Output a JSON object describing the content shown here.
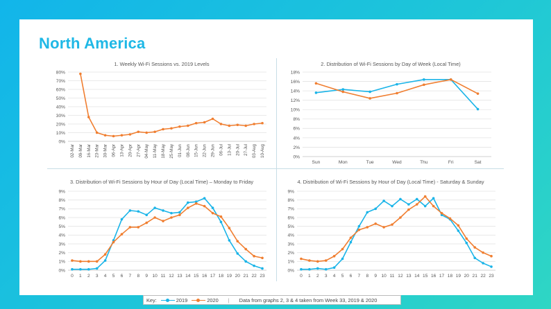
{
  "page": {
    "title": "North America"
  },
  "colors": {
    "series_2019": "#1ab4e8",
    "series_2020": "#f07e30",
    "grid": "#e3e3e3",
    "title": "#1fb8e6"
  },
  "legend": {
    "key_label": "Key:",
    "series_2019": "2019",
    "series_2020": "2020",
    "separator": "|",
    "note": "Data from graphs 2, 3 & 4 taken from Week 33, 2019 & 2020"
  },
  "chart_data": [
    {
      "type": "line",
      "title": "1. Weekly Wi-Fi Sessions vs. 2019 Levels",
      "categories": [
        "02-Mar",
        "09-Mar",
        "16-Mar",
        "23-Mar",
        "30-Mar",
        "06-Apr",
        "13-Apr",
        "20-Apr",
        "27-Apr",
        "04-May",
        "11-May",
        "18-May",
        "25-May",
        "01-Jun",
        "08-Jun",
        "15-Jun",
        "22-Jun",
        "29-Jun",
        "06-Jul",
        "13-Jul",
        "20-Jul",
        "27-Jul",
        "03-Aug",
        "10-Aug"
      ],
      "yticks": [
        "0%",
        "10%",
        "20%",
        "30%",
        "40%",
        "50%",
        "60%",
        "70%",
        "80%"
      ],
      "ylim": [
        0,
        80
      ],
      "series": [
        {
          "name": "2020",
          "color": "#f07e30",
          "values": [
            null,
            78,
            28,
            10,
            7,
            6,
            7,
            8,
            11,
            10,
            11,
            14,
            15,
            17,
            18,
            21,
            22,
            26,
            20,
            18,
            19,
            18,
            20,
            21
          ]
        }
      ]
    },
    {
      "type": "line",
      "title": "2. Distribution of Wi-Fi Sessions by Day of Week (Local Time)",
      "categories": [
        "Sun",
        "Mon",
        "Tue",
        "Wed",
        "Thu",
        "Fri",
        "Sat"
      ],
      "yticks": [
        "0%",
        "2%",
        "4%",
        "6%",
        "8%",
        "10%",
        "12%",
        "14%",
        "16%",
        "18%"
      ],
      "ylim": [
        0,
        18
      ],
      "series": [
        {
          "name": "2019",
          "color": "#1ab4e8",
          "values": [
            13.6,
            14.3,
            13.8,
            15.4,
            16.4,
            16.4,
            10.1
          ]
        },
        {
          "name": "2020",
          "color": "#f07e30",
          "values": [
            15.6,
            13.8,
            12.4,
            13.5,
            15.3,
            16.4,
            13.4
          ]
        }
      ]
    },
    {
      "type": "line",
      "title": "3. Distribution of Wi-Fi Sessions by Hour of Day (Local Time) – Monday to Friday",
      "categories": [
        "0",
        "1",
        "2",
        "3",
        "4",
        "5",
        "6",
        "7",
        "8",
        "9",
        "10",
        "11",
        "12",
        "13",
        "14",
        "15",
        "16",
        "17",
        "18",
        "19",
        "20",
        "21",
        "22",
        "23"
      ],
      "yticks": [
        "0%",
        "1%",
        "2%",
        "3%",
        "4%",
        "5%",
        "6%",
        "7%",
        "8%",
        "9%"
      ],
      "ylim": [
        0,
        9
      ],
      "series": [
        {
          "name": "2019",
          "color": "#1ab4e8",
          "values": [
            0.1,
            0.1,
            0.1,
            0.2,
            1.1,
            3.4,
            5.8,
            6.8,
            6.7,
            6.3,
            7.1,
            6.8,
            6.5,
            6.6,
            7.7,
            7.8,
            8.2,
            7.1,
            5.5,
            3.4,
            1.9,
            1.0,
            0.5,
            0.2
          ]
        },
        {
          "name": "2020",
          "color": "#f07e30",
          "values": [
            1.1,
            1.0,
            1.0,
            1.0,
            1.8,
            3.2,
            4.1,
            4.9,
            4.9,
            5.4,
            6.0,
            5.6,
            6.0,
            6.3,
            7.1,
            7.6,
            7.3,
            6.5,
            6.1,
            4.8,
            3.3,
            2.4,
            1.6,
            1.4
          ]
        }
      ]
    },
    {
      "type": "line",
      "title": "4. Distribution of Wi-Fi Sessions by Hour of Day (Local Time) - Saturday & Sunday",
      "categories": [
        "0",
        "1",
        "2",
        "3",
        "4",
        "5",
        "6",
        "7",
        "8",
        "9",
        "10",
        "11",
        "12",
        "13",
        "14",
        "15",
        "16",
        "17",
        "18",
        "19",
        "20",
        "21",
        "22",
        "23"
      ],
      "yticks": [
        "0%",
        "1%",
        "2%",
        "3%",
        "4%",
        "5%",
        "6%",
        "7%",
        "8%",
        "9%"
      ],
      "ylim": [
        0,
        9
      ],
      "series": [
        {
          "name": "2019",
          "color": "#1ab4e8",
          "values": [
            0.1,
            0.1,
            0.2,
            0.1,
            0.3,
            1.3,
            3.2,
            5.0,
            6.6,
            7.0,
            7.9,
            7.3,
            8.1,
            7.5,
            8.1,
            7.3,
            8.2,
            6.3,
            5.8,
            4.5,
            3.1,
            1.4,
            0.8,
            0.4
          ]
        },
        {
          "name": "2020",
          "color": "#f07e30",
          "values": [
            1.3,
            1.1,
            1.0,
            1.1,
            1.6,
            2.4,
            3.7,
            4.6,
            4.9,
            5.3,
            4.9,
            5.2,
            6.0,
            6.9,
            7.5,
            8.4,
            7.3,
            6.5,
            5.9,
            5.1,
            3.6,
            2.6,
            2.0,
            1.6
          ]
        }
      ]
    }
  ]
}
